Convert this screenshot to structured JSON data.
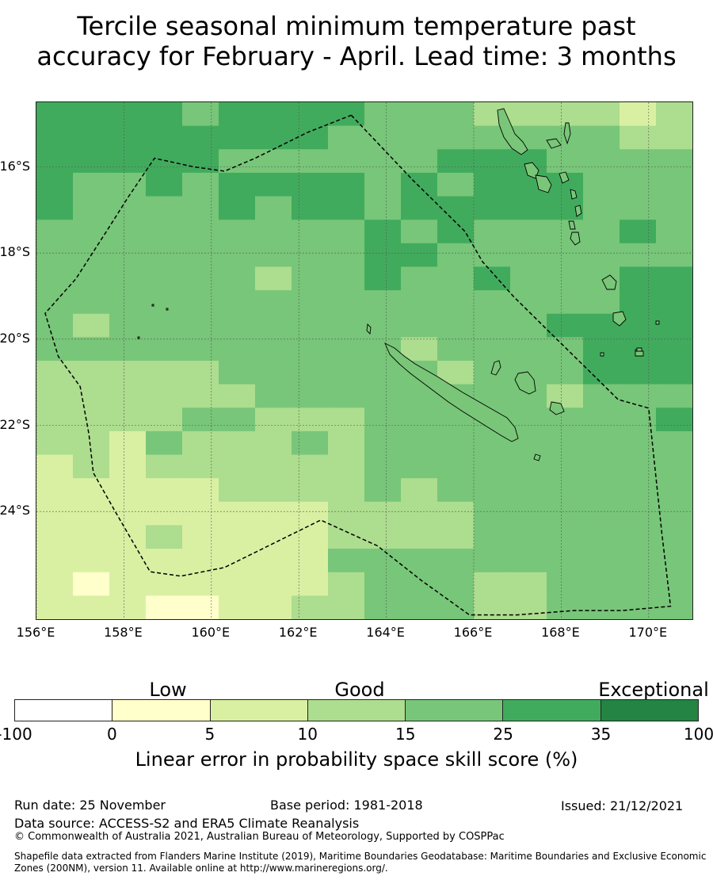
{
  "title_line1": "Tercile seasonal minimum temperature past",
  "title_line2": "accuracy for February - April. Lead time: 3 months",
  "map": {
    "lon_range": [
      156,
      171
    ],
    "lat_range": [
      -26.5,
      -14.5
    ],
    "lat_labels": [
      "16°S",
      "18°S",
      "20°S",
      "22°S",
      "24°S"
    ],
    "lat_values": [
      -16,
      -18,
      -20,
      -22,
      -24
    ],
    "lon_labels": [
      "156°E",
      "158°E",
      "160°E",
      "162°E",
      "164°E",
      "166°E",
      "168°E",
      "170°E"
    ],
    "lon_values": [
      156,
      158,
      160,
      162,
      164,
      166,
      168,
      170
    ],
    "grid_lines": true,
    "eez_boundary": [
      [
        163.2,
        -14.8
      ],
      [
        164.6,
        -16.3
      ],
      [
        165.8,
        -17.5
      ],
      [
        166.2,
        -18.2
      ],
      [
        166.9,
        -19.0
      ],
      [
        167.7,
        -19.8
      ],
      [
        168.5,
        -20.6
      ],
      [
        169.3,
        -21.4
      ],
      [
        170.0,
        -21.6
      ],
      [
        170.3,
        -24.5
      ],
      [
        170.5,
        -26.2
      ],
      [
        169.4,
        -26.3
      ],
      [
        168.3,
        -26.3
      ],
      [
        167.0,
        -26.4
      ],
      [
        165.9,
        -26.4
      ],
      [
        164.8,
        -25.6
      ],
      [
        163.8,
        -24.8
      ],
      [
        162.5,
        -24.2
      ],
      [
        161.5,
        -24.7
      ],
      [
        160.3,
        -25.3
      ],
      [
        159.3,
        -25.5
      ],
      [
        158.6,
        -25.4
      ],
      [
        157.8,
        -24.0
      ],
      [
        157.3,
        -23.1
      ],
      [
        157.2,
        -22.2
      ],
      [
        157.0,
        -21.1
      ],
      [
        156.5,
        -20.4
      ],
      [
        156.2,
        -19.4
      ],
      [
        156.9,
        -18.6
      ],
      [
        157.6,
        -17.5
      ],
      [
        158.1,
        -16.7
      ],
      [
        158.7,
        -15.8
      ],
      [
        159.6,
        -16.0
      ],
      [
        160.3,
        -16.1
      ],
      [
        161.0,
        -15.8
      ],
      [
        162.2,
        -15.2
      ],
      [
        163.2,
        -14.8
      ]
    ]
  },
  "grid": {
    "lon0": 156,
    "lat0": -14.5,
    "lon_step": 0.833333,
    "lat_step": 0.545455,
    "cols": 18,
    "rows": 22,
    "cells": [
      [
        5,
        5,
        5,
        5,
        4,
        5,
        5,
        5,
        5,
        4,
        4,
        4,
        3,
        3,
        3,
        3,
        2,
        3
      ],
      [
        5,
        5,
        5,
        5,
        5,
        5,
        5,
        5,
        4,
        4,
        4,
        4,
        4,
        4,
        4,
        4,
        3,
        3
      ],
      [
        5,
        5,
        5,
        5,
        5,
        4,
        4,
        4,
        4,
        4,
        4,
        5,
        5,
        5,
        4,
        4,
        4,
        4
      ],
      [
        5,
        4,
        4,
        5,
        4,
        5,
        5,
        5,
        5,
        4,
        5,
        4,
        5,
        5,
        5,
        4,
        4,
        4
      ],
      [
        5,
        4,
        4,
        4,
        4,
        5,
        4,
        5,
        5,
        4,
        5,
        5,
        5,
        5,
        5,
        4,
        4,
        4
      ],
      [
        4,
        4,
        4,
        4,
        4,
        4,
        4,
        4,
        4,
        5,
        4,
        5,
        4,
        4,
        4,
        4,
        5,
        4
      ],
      [
        4,
        4,
        4,
        4,
        4,
        4,
        4,
        4,
        4,
        5,
        5,
        4,
        4,
        4,
        4,
        4,
        4,
        4
      ],
      [
        4,
        4,
        4,
        4,
        4,
        4,
        3,
        4,
        4,
        5,
        4,
        4,
        5,
        4,
        4,
        4,
        5,
        5
      ],
      [
        4,
        4,
        4,
        4,
        4,
        4,
        4,
        4,
        4,
        4,
        4,
        4,
        4,
        4,
        4,
        4,
        5,
        5
      ],
      [
        4,
        3,
        4,
        4,
        4,
        4,
        4,
        4,
        4,
        4,
        4,
        4,
        4,
        4,
        5,
        5,
        5,
        5
      ],
      [
        4,
        4,
        4,
        4,
        4,
        4,
        4,
        4,
        4,
        4,
        3,
        4,
        4,
        4,
        4,
        5,
        5,
        5
      ],
      [
        3,
        3,
        3,
        3,
        3,
        4,
        4,
        4,
        4,
        4,
        4,
        3,
        4,
        4,
        4,
        5,
        5,
        5
      ],
      [
        3,
        3,
        3,
        3,
        3,
        3,
        4,
        4,
        4,
        4,
        4,
        4,
        4,
        4,
        3,
        4,
        4,
        4
      ],
      [
        3,
        3,
        3,
        3,
        4,
        4,
        3,
        3,
        3,
        4,
        4,
        4,
        4,
        4,
        4,
        4,
        4,
        5
      ],
      [
        3,
        3,
        2,
        4,
        3,
        3,
        3,
        4,
        3,
        4,
        4,
        4,
        4,
        4,
        4,
        4,
        4,
        4
      ],
      [
        2,
        3,
        2,
        3,
        3,
        3,
        3,
        3,
        3,
        4,
        4,
        4,
        4,
        4,
        4,
        4,
        4,
        4
      ],
      [
        2,
        2,
        2,
        2,
        2,
        3,
        3,
        3,
        3,
        4,
        3,
        4,
        4,
        4,
        4,
        4,
        4,
        4
      ],
      [
        2,
        2,
        2,
        2,
        2,
        2,
        2,
        2,
        3,
        3,
        3,
        3,
        4,
        4,
        4,
        4,
        4,
        4
      ],
      [
        2,
        2,
        2,
        3,
        2,
        2,
        2,
        2,
        3,
        3,
        3,
        3,
        4,
        4,
        4,
        4,
        4,
        4
      ],
      [
        2,
        2,
        2,
        2,
        2,
        2,
        2,
        2,
        4,
        4,
        4,
        4,
        4,
        4,
        4,
        4,
        4,
        4
      ],
      [
        2,
        1,
        2,
        2,
        2,
        2,
        2,
        2,
        3,
        4,
        4,
        4,
        3,
        3,
        4,
        4,
        4,
        4
      ],
      [
        2,
        2,
        2,
        1,
        1,
        2,
        2,
        3,
        3,
        4,
        4,
        4,
        3,
        3,
        4,
        4,
        4,
        4
      ]
    ]
  },
  "colorbar": {
    "categories": [
      "Low",
      "Good",
      "Exceptional"
    ],
    "ticks": [
      "-100",
      "0",
      "5",
      "10",
      "15",
      "25",
      "35",
      "100"
    ],
    "colors": [
      "#ffffff",
      "#ffffcc",
      "#d9f0a3",
      "#addd8e",
      "#78c679",
      "#41ab5d",
      "#238443"
    ],
    "label": "Linear error in probability space skill score (%)"
  },
  "footer": {
    "run_date": "Run date: 25 November",
    "base_period": "Base period: 1981-2018",
    "issued": "Issued: 21/12/2021",
    "data_source": "Data source: ACCESS-S2 and ERA5 Climate Reanalysis",
    "copyright": "© Commonwealth of Australia 2021, Australian Bureau of Meteorology, Supported by COSPPac",
    "shapefile_line1": "Shapefile data extracted from Flanders Marine Institute (2019), Maritime Boundaries Geodatabase: Maritime Boundaries and Exclusive Economic",
    "shapefile_line2": "Zones (200NM), version 11. Available online at http://www.marineregions.org/."
  }
}
